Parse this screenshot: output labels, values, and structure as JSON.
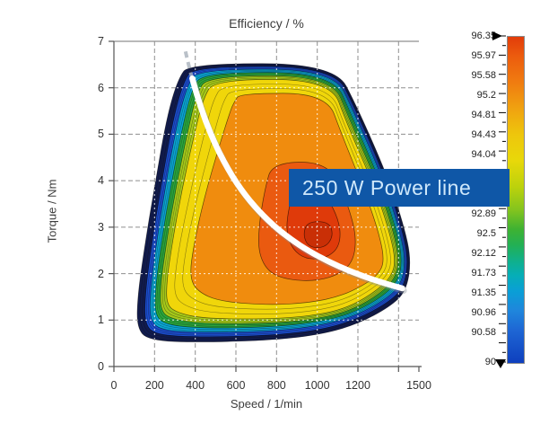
{
  "chart_data": {
    "type": "contour",
    "title": "Efficiency / %",
    "xlabel": "Speed / 1/min",
    "ylabel": "Torque / Nm",
    "xlim": [
      0,
      1500
    ],
    "ylim": [
      0,
      7
    ],
    "grid": "dashed",
    "annotation": "250 W Power line",
    "annotation_colors": {
      "bg": "#0f57a7",
      "text": "#cfe8fb"
    },
    "x_tick_labels": [
      {
        "v": 0,
        "t": "0"
      },
      {
        "v": 200,
        "t": "200"
      },
      {
        "v": 400,
        "t": "400"
      },
      {
        "v": 600,
        "t": "600"
      },
      {
        "v": 800,
        "t": "800"
      },
      {
        "v": 1000,
        "t": "1000"
      },
      {
        "v": 1200,
        "t": "1200"
      },
      {
        "v": 1500,
        "t": "1500"
      }
    ],
    "x_ticks": [
      0,
      200,
      400,
      600,
      800,
      1000,
      1200,
      1400,
      1500
    ],
    "x_grid": [
      200,
      400,
      600,
      800,
      1000,
      1200,
      1400
    ],
    "y_ticks": [
      0,
      1,
      2,
      3,
      4,
      5,
      6,
      7
    ],
    "y_grid": [
      1,
      2,
      3,
      4,
      5,
      6
    ],
    "power_line": {
      "power_w": 250,
      "rpm_lead": 352,
      "rpm_start": 385,
      "rpm_end": 1438
    },
    "colorbar": {
      "min": 90,
      "max": 96.35,
      "labels": [
        {
          "value": 96.35,
          "text": "96.35"
        },
        {
          "value": 95.97,
          "text": "95.97"
        },
        {
          "value": 95.58,
          "text": "95.58"
        },
        {
          "value": 95.2,
          "text": "95.2"
        },
        {
          "value": 94.81,
          "text": "94.81"
        },
        {
          "value": 94.43,
          "text": "94.43"
        },
        {
          "value": 94.04,
          "text": "94.04"
        },
        {
          "value": 92.89,
          "text": "92.89"
        },
        {
          "value": 92.5,
          "text": "92.5"
        },
        {
          "value": 92.12,
          "text": "92.12"
        },
        {
          "value": 91.73,
          "text": "91.73"
        },
        {
          "value": 91.35,
          "text": "91.35"
        },
        {
          "value": 90.96,
          "text": "90.96"
        },
        {
          "value": 90.58,
          "text": "90.58"
        },
        {
          "value": 90,
          "text": "90"
        }
      ],
      "gradient": [
        {
          "pos": 0,
          "color": "#e23c0a"
        },
        {
          "pos": 6,
          "color": "#ec5c0e"
        },
        {
          "pos": 14,
          "color": "#f07c10"
        },
        {
          "pos": 22,
          "color": "#f0a210"
        },
        {
          "pos": 30,
          "color": "#eec60c"
        },
        {
          "pos": 38,
          "color": "#e8d80a"
        },
        {
          "pos": 46,
          "color": "#bcd20c"
        },
        {
          "pos": 53,
          "color": "#84c41e"
        },
        {
          "pos": 59,
          "color": "#3eb232"
        },
        {
          "pos": 64,
          "color": "#22b056"
        },
        {
          "pos": 69,
          "color": "#0fb08e"
        },
        {
          "pos": 73,
          "color": "#06aeb6"
        },
        {
          "pos": 78,
          "color": "#0a9fd6"
        },
        {
          "pos": 84,
          "color": "#1f86dc"
        },
        {
          "pos": 90,
          "color": "#1e66d4"
        },
        {
          "pos": 100,
          "color": "#0e3fbe"
        }
      ]
    },
    "regions": [
      {
        "name": "band-navy",
        "efficiency": "90.0-90.6",
        "color": "#111b4e",
        "points": [
          [
            370,
            6.52
          ],
          [
            1085,
            6.52
          ],
          [
            1200,
            5.55
          ],
          [
            1345,
            4.1
          ],
          [
            1425,
            3.05
          ],
          [
            1462,
            2.3
          ],
          [
            1438,
            1.62
          ],
          [
            1355,
            1.28
          ],
          [
            1200,
            0.92
          ],
          [
            1030,
            0.7
          ],
          [
            790,
            0.57
          ],
          [
            430,
            0.52
          ],
          [
            168,
            0.56
          ],
          [
            112,
            0.85
          ],
          [
            118,
            1.55
          ],
          [
            150,
            2.55
          ],
          [
            205,
            4.0
          ],
          [
            262,
            5.4
          ],
          [
            315,
            6.18
          ]
        ]
      },
      {
        "name": "band-blue",
        "efficiency": "90.6-91.3",
        "color": "#1b4ed2",
        "points": [
          [
            392,
            6.46
          ],
          [
            1082,
            6.46
          ],
          [
            1192,
            5.5
          ],
          [
            1336,
            4.05
          ],
          [
            1414,
            3.0
          ],
          [
            1448,
            2.3
          ],
          [
            1426,
            1.7
          ],
          [
            1346,
            1.37
          ],
          [
            1196,
            1.02
          ],
          [
            1030,
            0.8
          ],
          [
            790,
            0.67
          ],
          [
            432,
            0.63
          ],
          [
            200,
            0.68
          ],
          [
            150,
            0.95
          ],
          [
            155,
            1.6
          ],
          [
            183,
            2.57
          ],
          [
            235,
            3.97
          ],
          [
            290,
            5.3
          ],
          [
            340,
            6.1
          ]
        ]
      },
      {
        "name": "band-cyan",
        "efficiency": "91.3-92.1",
        "color": "#09a6d4",
        "points": [
          [
            412,
            6.4
          ],
          [
            1078,
            6.4
          ],
          [
            1183,
            5.45
          ],
          [
            1326,
            4.0
          ],
          [
            1403,
            2.96
          ],
          [
            1434,
            2.3
          ],
          [
            1413,
            1.77
          ],
          [
            1337,
            1.45
          ],
          [
            1192,
            1.1
          ],
          [
            1028,
            0.89
          ],
          [
            790,
            0.76
          ],
          [
            434,
            0.73
          ],
          [
            228,
            0.78
          ],
          [
            176,
            1.02
          ],
          [
            180,
            1.65
          ],
          [
            207,
            2.6
          ],
          [
            256,
            3.94
          ],
          [
            310,
            5.22
          ],
          [
            360,
            6.03
          ]
        ]
      },
      {
        "name": "band-green",
        "efficiency": "92.1-92.9",
        "color": "#2aa83c",
        "points": [
          [
            436,
            6.33
          ],
          [
            1074,
            6.33
          ],
          [
            1172,
            5.38
          ],
          [
            1314,
            3.95
          ],
          [
            1390,
            2.93
          ],
          [
            1419,
            2.3
          ],
          [
            1398,
            1.84
          ],
          [
            1326,
            1.52
          ],
          [
            1186,
            1.17
          ],
          [
            1026,
            0.97
          ],
          [
            790,
            0.85
          ],
          [
            437,
            0.82
          ],
          [
            256,
            0.9
          ],
          [
            202,
            1.1
          ],
          [
            205,
            1.71
          ],
          [
            232,
            2.63
          ],
          [
            280,
            3.9
          ],
          [
            336,
            5.13
          ],
          [
            382,
            5.95
          ]
        ]
      },
      {
        "name": "band-yellow-green",
        "efficiency": "92.9-93.7",
        "color": "#a6c919",
        "points": [
          [
            462,
            6.26
          ],
          [
            1070,
            6.26
          ],
          [
            1160,
            5.3
          ],
          [
            1300,
            3.9
          ],
          [
            1375,
            2.9
          ],
          [
            1403,
            2.29
          ],
          [
            1383,
            1.9
          ],
          [
            1313,
            1.58
          ],
          [
            1178,
            1.23
          ],
          [
            1023,
            1.04
          ],
          [
            790,
            0.93
          ],
          [
            441,
            0.92
          ],
          [
            284,
            1.02
          ],
          [
            228,
            1.2
          ],
          [
            230,
            1.78
          ],
          [
            258,
            2.66
          ],
          [
            306,
            3.87
          ],
          [
            362,
            5.04
          ],
          [
            405,
            5.86
          ]
        ]
      },
      {
        "name": "band-yellow",
        "efficiency": "93.7-94.4",
        "color": "#f0d60a",
        "points": [
          [
            495,
            6.18
          ],
          [
            1065,
            6.18
          ],
          [
            1146,
            5.22
          ],
          [
            1284,
            3.85
          ],
          [
            1357,
            2.87
          ],
          [
            1385,
            2.28
          ],
          [
            1366,
            1.95
          ],
          [
            1298,
            1.65
          ],
          [
            1168,
            1.3
          ],
          [
            1020,
            1.12
          ],
          [
            790,
            1.02
          ],
          [
            446,
            1.03
          ],
          [
            315,
            1.15
          ],
          [
            258,
            1.33
          ],
          [
            260,
            1.86
          ],
          [
            288,
            2.7
          ],
          [
            336,
            3.84
          ],
          [
            392,
            4.94
          ],
          [
            438,
            5.76
          ]
        ]
      },
      {
        "name": "band-orange",
        "efficiency": "94.4-95.2",
        "color": "#f08c0e",
        "points": [
          [
            620,
            5.88
          ],
          [
            1045,
            5.88
          ],
          [
            1122,
            4.98
          ],
          [
            1242,
            3.68
          ],
          [
            1308,
            2.8
          ],
          [
            1330,
            2.26
          ],
          [
            1300,
            1.98
          ],
          [
            1228,
            1.75
          ],
          [
            1118,
            1.52
          ],
          [
            975,
            1.38
          ],
          [
            770,
            1.32
          ],
          [
            520,
            1.4
          ],
          [
            408,
            1.62
          ],
          [
            372,
            1.95
          ],
          [
            392,
            2.6
          ],
          [
            442,
            3.6
          ],
          [
            520,
            4.78
          ],
          [
            572,
            5.5
          ],
          [
            592,
            5.7
          ]
        ]
      },
      {
        "name": "band-red-orange",
        "efficiency": "95.2-95.8",
        "color": "#ea5a10",
        "points": [
          [
            780,
            4.4
          ],
          [
            1060,
            4.4
          ],
          [
            1150,
            3.5
          ],
          [
            1192,
            2.82
          ],
          [
            1180,
            2.3
          ],
          [
            1118,
            2.0
          ],
          [
            1000,
            1.84
          ],
          [
            862,
            1.86
          ],
          [
            762,
            2.02
          ],
          [
            712,
            2.42
          ],
          [
            712,
            3.0
          ],
          [
            742,
            3.82
          ]
        ]
      },
      {
        "name": "band-red",
        "efficiency": "95.8-96.2",
        "color": "#df3a0a",
        "points": [
          [
            880,
            3.72
          ],
          [
            1042,
            3.72
          ],
          [
            1112,
            3.1
          ],
          [
            1112,
            2.6
          ],
          [
            1050,
            2.34
          ],
          [
            948,
            2.3
          ],
          [
            878,
            2.52
          ],
          [
            848,
            2.9
          ],
          [
            856,
            3.32
          ]
        ]
      },
      {
        "name": "band-dark-red",
        "efficiency": "96.2-96.35",
        "color": "#c92f06",
        "points": [
          [
            950,
            3.12
          ],
          [
            1058,
            3.12
          ],
          [
            1080,
            2.82
          ],
          [
            1040,
            2.56
          ],
          [
            960,
            2.56
          ],
          [
            930,
            2.82
          ]
        ]
      }
    ]
  }
}
